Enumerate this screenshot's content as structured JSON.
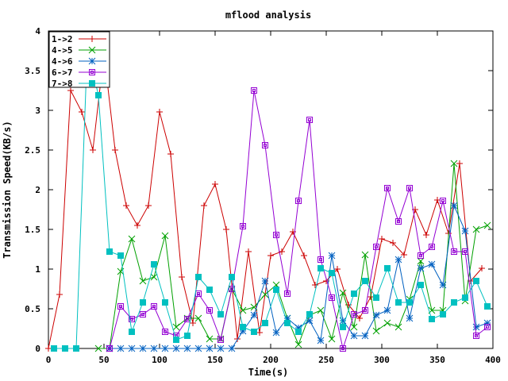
{
  "chart_data": {
    "type": "line",
    "title": "mflood analysis",
    "xlabel": "Time(s)",
    "ylabel": "Transmission Speed(KB/s)",
    "xlim": [
      0,
      400
    ],
    "ylim": [
      0,
      4
    ],
    "xticks": [
      0,
      50,
      100,
      150,
      200,
      250,
      300,
      350,
      400
    ],
    "yticks": [
      0,
      0.5,
      1,
      1.5,
      2,
      2.5,
      3,
      3.5,
      4
    ],
    "grid": false,
    "legend_position": "top-left",
    "series": [
      {
        "name": "1->2",
        "color": "#cc0000",
        "marker": "plus",
        "points": [
          [
            0,
            0
          ],
          [
            10,
            0.68
          ],
          [
            20,
            3.25
          ],
          [
            30,
            2.98
          ],
          [
            40,
            2.5
          ],
          [
            50,
            3.72
          ],
          [
            60,
            2.5
          ],
          [
            70,
            1.8
          ],
          [
            80,
            1.55
          ],
          [
            90,
            1.8
          ],
          [
            100,
            2.98
          ],
          [
            110,
            2.45
          ],
          [
            120,
            0.9
          ],
          [
            130,
            0.32
          ],
          [
            140,
            1.8
          ],
          [
            150,
            2.07
          ],
          [
            160,
            1.5
          ],
          [
            170,
            0.12
          ],
          [
            180,
            1.22
          ],
          [
            190,
            0.2
          ],
          [
            200,
            1.17
          ],
          [
            210,
            1.22
          ],
          [
            220,
            1.47
          ],
          [
            230,
            1.17
          ],
          [
            240,
            0.8
          ],
          [
            250,
            0.85
          ],
          [
            260,
            1.0
          ],
          [
            270,
            0.55
          ],
          [
            280,
            0.38
          ],
          [
            290,
            0.65
          ],
          [
            300,
            1.38
          ],
          [
            310,
            1.33
          ],
          [
            320,
            1.18
          ],
          [
            330,
            1.75
          ],
          [
            340,
            1.43
          ],
          [
            350,
            1.87
          ],
          [
            360,
            1.45
          ],
          [
            370,
            2.33
          ],
          [
            380,
            0.85
          ],
          [
            390,
            1.01
          ]
        ]
      },
      {
        "name": "4->5",
        "color": "#00a000",
        "marker": "x",
        "points": [
          [
            45,
            0
          ],
          [
            55,
            0
          ],
          [
            65,
            0.97
          ],
          [
            75,
            1.38
          ],
          [
            85,
            0.85
          ],
          [
            95,
            0.9
          ],
          [
            105,
            1.42
          ],
          [
            115,
            0.27
          ],
          [
            125,
            0.38
          ],
          [
            135,
            0.38
          ],
          [
            145,
            0.12
          ],
          [
            155,
            0.12
          ],
          [
            165,
            0.75
          ],
          [
            175,
            0.48
          ],
          [
            185,
            0.52
          ],
          [
            195,
            0.68
          ],
          [
            205,
            0.8
          ],
          [
            215,
            0.38
          ],
          [
            225,
            0.05
          ],
          [
            235,
            0.42
          ],
          [
            245,
            0.48
          ],
          [
            255,
            0.12
          ],
          [
            265,
            0.7
          ],
          [
            275,
            0.27
          ],
          [
            285,
            1.18
          ],
          [
            295,
            0.22
          ],
          [
            305,
            0.32
          ],
          [
            315,
            0.27
          ],
          [
            325,
            0.62
          ],
          [
            335,
            1.1
          ],
          [
            345,
            0.48
          ],
          [
            355,
            0.48
          ],
          [
            365,
            2.33
          ],
          [
            375,
            0.6
          ],
          [
            385,
            1.5
          ],
          [
            395,
            1.55
          ]
        ]
      },
      {
        "name": "4->6",
        "color": "#0060c0",
        "marker": "star",
        "points": [
          [
            55,
            0
          ],
          [
            65,
            0
          ],
          [
            75,
            0
          ],
          [
            85,
            0
          ],
          [
            95,
            0
          ],
          [
            105,
            0
          ],
          [
            115,
            0
          ],
          [
            125,
            0
          ],
          [
            135,
            0
          ],
          [
            145,
            0
          ],
          [
            155,
            0
          ],
          [
            165,
            0
          ],
          [
            175,
            0.22
          ],
          [
            185,
            0.42
          ],
          [
            195,
            0.85
          ],
          [
            205,
            0.2
          ],
          [
            215,
            0.38
          ],
          [
            225,
            0.26
          ],
          [
            235,
            0.35
          ],
          [
            245,
            0.1
          ],
          [
            255,
            1.17
          ],
          [
            265,
            0.35
          ],
          [
            275,
            0.16
          ],
          [
            285,
            0.16
          ],
          [
            295,
            0.42
          ],
          [
            305,
            0.48
          ],
          [
            315,
            1.12
          ],
          [
            325,
            0.38
          ],
          [
            335,
            1.01
          ],
          [
            345,
            1.06
          ],
          [
            355,
            0.8
          ],
          [
            365,
            1.8
          ],
          [
            375,
            1.48
          ],
          [
            385,
            0.27
          ],
          [
            395,
            0.32
          ]
        ]
      },
      {
        "name": "6->7",
        "color": "#9400d3",
        "marker": "square-open",
        "points": [
          [
            55,
            0
          ],
          [
            65,
            0.53
          ],
          [
            75,
            0.37
          ],
          [
            85,
            0.43
          ],
          [
            95,
            0.53
          ],
          [
            105,
            0.21
          ],
          [
            115,
            0.16
          ],
          [
            125,
            0.37
          ],
          [
            135,
            0.69
          ],
          [
            145,
            0.48
          ],
          [
            155,
            0.11
          ],
          [
            165,
            0.75
          ],
          [
            175,
            1.54
          ],
          [
            185,
            3.25
          ],
          [
            195,
            2.56
          ],
          [
            205,
            1.43
          ],
          [
            215,
            0.69
          ],
          [
            225,
            1.86
          ],
          [
            235,
            2.88
          ],
          [
            245,
            1.12
          ],
          [
            255,
            0.64
          ],
          [
            265,
            0.0
          ],
          [
            275,
            0.43
          ],
          [
            285,
            0.48
          ],
          [
            295,
            1.28
          ],
          [
            305,
            2.02
          ],
          [
            315,
            1.6
          ],
          [
            325,
            2.02
          ],
          [
            335,
            1.17
          ],
          [
            345,
            1.28
          ],
          [
            355,
            1.86
          ],
          [
            365,
            1.22
          ],
          [
            375,
            1.22
          ],
          [
            385,
            0.16
          ],
          [
            395,
            0.27
          ]
        ]
      },
      {
        "name": "7->8",
        "color": "#00c0c0",
        "marker": "square-filled",
        "points": [
          [
            5,
            0
          ],
          [
            15,
            0
          ],
          [
            25,
            0
          ],
          [
            35,
            3.78
          ],
          [
            45,
            3.19
          ],
          [
            55,
            1.22
          ],
          [
            65,
            1.17
          ],
          [
            75,
            0.21
          ],
          [
            85,
            0.58
          ],
          [
            95,
            1.06
          ],
          [
            105,
            0.58
          ],
          [
            115,
            0.11
          ],
          [
            125,
            0.16
          ],
          [
            135,
            0.9
          ],
          [
            145,
            0.74
          ],
          [
            155,
            0.43
          ],
          [
            165,
            0.9
          ],
          [
            175,
            0.27
          ],
          [
            185,
            0.21
          ],
          [
            195,
            0.32
          ],
          [
            205,
            0.74
          ],
          [
            215,
            0.32
          ],
          [
            225,
            0.21
          ],
          [
            235,
            0.43
          ],
          [
            245,
            1.01
          ],
          [
            255,
            0.95
          ],
          [
            265,
            0.27
          ],
          [
            275,
            0.69
          ],
          [
            285,
            0.85
          ],
          [
            295,
            0.64
          ],
          [
            305,
            1.01
          ],
          [
            315,
            0.58
          ],
          [
            325,
            0.58
          ],
          [
            335,
            0.8
          ],
          [
            345,
            0.37
          ],
          [
            355,
            0.43
          ],
          [
            365,
            0.58
          ],
          [
            375,
            0.64
          ],
          [
            385,
            0.85
          ],
          [
            395,
            0.53
          ]
        ]
      }
    ]
  }
}
